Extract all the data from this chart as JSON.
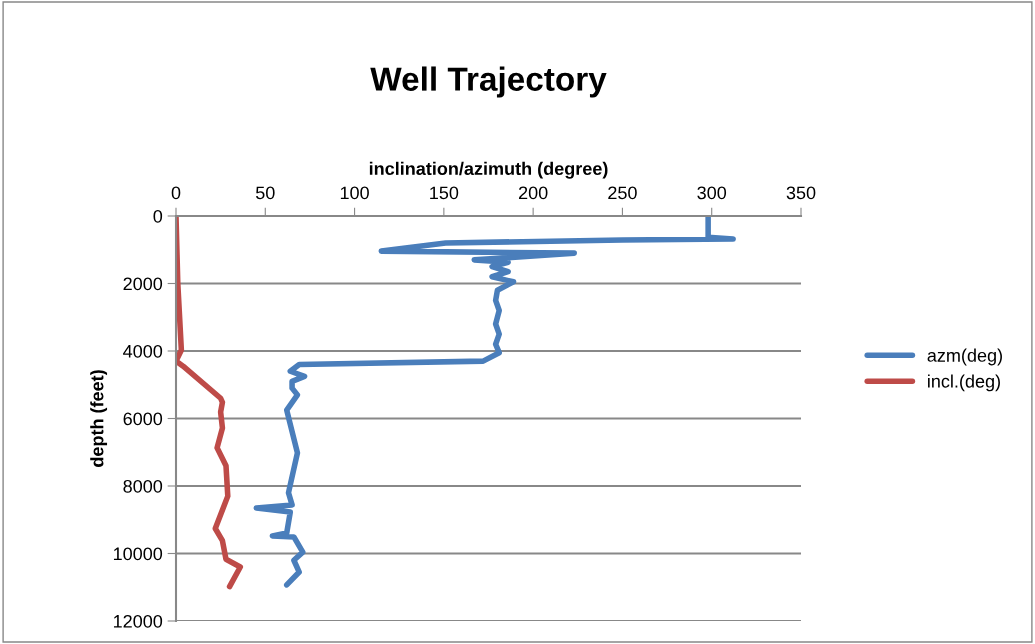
{
  "chart_data": {
    "type": "line",
    "title": "Well Trajectory",
    "xlabel": "inclination/azimuth (degree)",
    "ylabel": "depth (feet)",
    "xlim": [
      0,
      350
    ],
    "xticks": [
      0,
      50,
      100,
      150,
      200,
      250,
      300,
      350
    ],
    "ylim": [
      12000,
      0
    ],
    "yticks": [
      0,
      2000,
      4000,
      6000,
      8000,
      10000,
      12000
    ],
    "grid": "y",
    "legend": "right",
    "marker": "none",
    "line_style": "solid",
    "series": [
      {
        "name": "azm(deg)",
        "color": "#4a7ebb",
        "x": [
          298,
          298,
          312,
          250,
          151,
          115,
          223,
          167,
          186,
          177,
          186,
          177,
          189,
          180,
          179,
          181,
          179,
          181,
          179,
          181,
          172,
          69,
          64,
          72,
          65,
          65,
          68,
          62,
          68,
          63,
          65,
          45,
          64,
          62,
          54,
          66,
          71,
          66,
          69,
          62
        ],
        "values": [
          0,
          630,
          680,
          710,
          800,
          1040,
          1100,
          1300,
          1370,
          1500,
          1650,
          1800,
          1950,
          2200,
          2500,
          2800,
          3200,
          3500,
          3800,
          4050,
          4300,
          4400,
          4600,
          4750,
          4900,
          5100,
          5300,
          5750,
          7020,
          8200,
          8560,
          8650,
          8770,
          9390,
          9480,
          9510,
          9960,
          10200,
          10550,
          10930
        ]
      },
      {
        "name": "incl.(deg)",
        "color": "#be4b48",
        "x": [
          0,
          1,
          3,
          0,
          4,
          25,
          26,
          25,
          26,
          23,
          28,
          29,
          22,
          26,
          28,
          36,
          30
        ],
        "values": [
          0,
          2000,
          3970,
          4300,
          4450,
          5400,
          5520,
          5810,
          6280,
          6870,
          7400,
          8300,
          9260,
          9620,
          10170,
          10400,
          10980
        ]
      }
    ]
  }
}
